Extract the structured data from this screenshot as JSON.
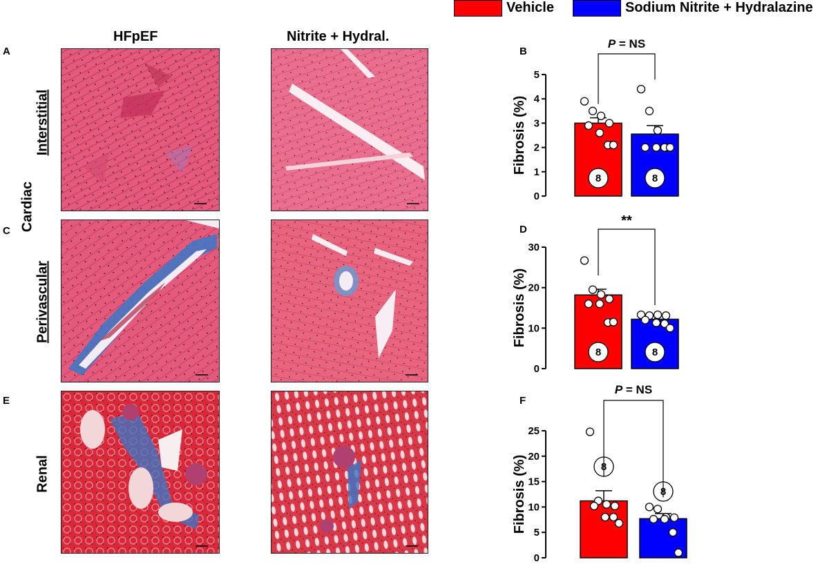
{
  "legend": {
    "items": [
      {
        "label": "Vehicle",
        "color": "#ff0000"
      },
      {
        "label": "Sodium Nitrite + Hydralazine",
        "color": "#0000ff"
      }
    ]
  },
  "columns": {
    "left": "HFpEF",
    "right": "Nitrite + Hydral."
  },
  "row_labels": {
    "cardiac": "Cardiac",
    "interstitial": "Interstitial",
    "perivascular": "Perivascular",
    "renal": "Renal"
  },
  "panel_letters": {
    "A": "A",
    "B": "B",
    "C": "C",
    "D": "D",
    "E": "E",
    "F": "F"
  },
  "micrographs": {
    "interstitial_hfpef": {
      "stain": "masson-trichrome",
      "tissue": "myocardium"
    },
    "interstitial_treated": {
      "stain": "masson-trichrome",
      "tissue": "myocardium"
    },
    "perivascular_hfpef": {
      "stain": "masson-trichrome",
      "tissue": "myocardium-vessel"
    },
    "perivascular_treated": {
      "stain": "masson-trichrome",
      "tissue": "myocardium-vessel"
    },
    "renal_hfpef": {
      "stain": "masson-trichrome",
      "tissue": "kidney"
    },
    "renal_treated": {
      "stain": "masson-trichrome",
      "tissue": "kidney"
    }
  },
  "colors": {
    "vehicle": "#ff0000",
    "treated": "#0000ff",
    "tissue_pink": "#e8557a",
    "fibrosis_blue": "#3a78c8",
    "renal_red": "#d8283a"
  },
  "chart_data": [
    {
      "panel": "B",
      "type": "bar",
      "categories": [
        "Vehicle",
        "Sodium Nitrite + Hydralazine"
      ],
      "values": [
        3.0,
        2.55
      ],
      "sem": [
        0.22,
        0.35
      ],
      "points": [
        [
          3.9,
          3.5,
          3.3,
          3.0,
          2.9,
          2.6,
          2.1,
          2.1
        ],
        [
          4.4,
          3.5,
          2.7,
          2.0,
          2.0,
          2.0,
          2.0,
          2.0
        ]
      ],
      "n": [
        "8",
        "8"
      ],
      "ylabel": "Fibrosis  (%)",
      "ylim": [
        0,
        5
      ],
      "yticks": [
        0,
        1,
        2,
        3,
        4,
        5
      ],
      "ytick_labels": [
        "0",
        "1",
        "2",
        "3",
        "4",
        "5"
      ],
      "significance": {
        "label_italic": "P",
        "label_rest": " = NS"
      }
    },
    {
      "panel": "D",
      "type": "bar",
      "categories": [
        "Vehicle",
        "Sodium Nitrite + Hydralazine"
      ],
      "values": [
        18.2,
        12.2
      ],
      "sem": [
        1.4,
        0.9
      ],
      "points": [
        [
          26.7,
          19.5,
          18.3,
          17.2,
          16.0,
          16.0,
          11.4,
          11.5
        ],
        [
          13.3,
          13.1,
          13.3,
          13.1,
          12.0,
          11.3,
          11.1,
          10.0
        ]
      ],
      "n": [
        "8",
        "8"
      ],
      "ylabel": "Fibrosis  (%)",
      "ylim": [
        0,
        30
      ],
      "yticks": [
        0,
        10,
        20,
        30
      ],
      "ytick_labels": [
        "0",
        "10",
        "20",
        "30"
      ],
      "significance": {
        "label_italic": "",
        "label_rest": "**"
      }
    },
    {
      "panel": "F",
      "type": "bar",
      "categories": [
        "Vehicle",
        "Sodium Nitrite + Hydralazine"
      ],
      "values": [
        11.2,
        7.7
      ],
      "sem": [
        2.0,
        1.0
      ],
      "points": [
        [
          24.8,
          11.2,
          10.5,
          10.2,
          10.2,
          8.0,
          8.0,
          6.8
        ],
        [
          10.0,
          9.6,
          8.0,
          7.9,
          7.6,
          7.6,
          5.0,
          1.0
        ]
      ],
      "n": [
        "8",
        "8"
      ],
      "ylabel": "Fibrosis  (%)",
      "ylim": [
        0,
        25
      ],
      "yticks": [
        0,
        5,
        10,
        15,
        20,
        25
      ],
      "ytick_labels": [
        "0",
        "5",
        "10",
        "15",
        "20",
        "25"
      ],
      "significance": {
        "label_italic": "P",
        "label_rest": " = NS"
      }
    }
  ]
}
